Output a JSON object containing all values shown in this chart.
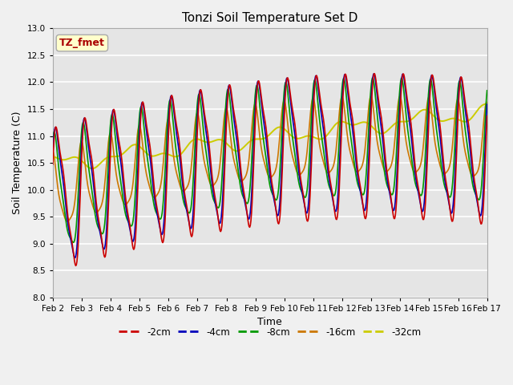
{
  "title": "Tonzi Soil Temperature Set D",
  "xlabel": "Time",
  "ylabel": "Soil Temperature (C)",
  "ylim": [
    8.0,
    13.0
  ],
  "yticks": [
    8.0,
    8.5,
    9.0,
    9.5,
    10.0,
    10.5,
    11.0,
    11.5,
    12.0,
    12.5,
    13.0
  ],
  "xlim": [
    2,
    17
  ],
  "xtick_labels": [
    "Feb 2",
    "Feb 3",
    "Feb 4",
    "Feb 5",
    "Feb 6",
    "Feb 7",
    "Feb 8",
    "Feb 9",
    "Feb 10",
    "Feb 11",
    "Feb 12",
    "Feb 13",
    "Feb 14",
    "Feb 15",
    "Feb 16",
    "Feb 17"
  ],
  "legend_labels": [
    "-2cm",
    "-4cm",
    "-8cm",
    "-16cm",
    "-32cm"
  ],
  "colors": [
    "#cc0000",
    "#0000bb",
    "#009900",
    "#cc7700",
    "#cccc00"
  ],
  "annotation_text": "TZ_fmet",
  "annotation_fg": "#aa0000",
  "annotation_bg": "#ffffcc",
  "bg_plot": "#e5e5e5",
  "bg_fig": "#f0f0f0",
  "grid_color": "#ffffff",
  "line_width": 1.2
}
